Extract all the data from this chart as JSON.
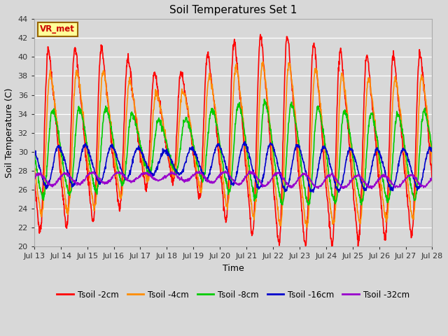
{
  "title": "Soil Temperatures Set 1",
  "xlabel": "Time",
  "ylabel": "Soil Temperature (C)",
  "ylim": [
    20,
    44
  ],
  "yticks": [
    20,
    22,
    24,
    26,
    28,
    30,
    32,
    34,
    36,
    38,
    40,
    42,
    44
  ],
  "x_labels": [
    "Jul 13",
    "Jul 14",
    "Jul 15",
    "Jul 16",
    "Jul 17",
    "Jul 18",
    "Jul 19",
    "Jul 20",
    "Jul 21",
    "Jul 22",
    "Jul 23",
    "Jul 24",
    "Jul 25",
    "Jul 26",
    "Jul 27",
    "Jul 28"
  ],
  "colors": {
    "Tsoil -2cm": "#ff0000",
    "Tsoil -4cm": "#ff8c00",
    "Tsoil -8cm": "#00cc00",
    "Tsoil -16cm": "#0000cc",
    "Tsoil -32cm": "#9900cc"
  },
  "annotation_text": "VR_met",
  "annotation_color": "#cc0000",
  "annotation_bg": "#ffff99",
  "annotation_border": "#996600",
  "fig_bg": "#d8d8d8",
  "plot_bg": "#d8d8d8",
  "grid_color": "#ffffff",
  "linewidth": 1.2,
  "n_days": 15,
  "points_per_day": 96,
  "figsize": [
    6.4,
    4.8
  ],
  "dpi": 100
}
